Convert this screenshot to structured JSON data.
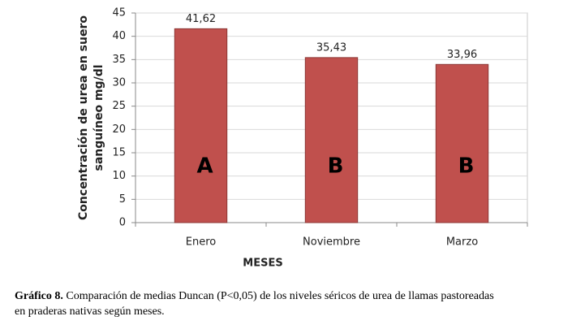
{
  "chart_data": {
    "type": "bar",
    "categories": [
      "Enero",
      "Noviembre",
      "Marzo"
    ],
    "values": [
      41.62,
      35.43,
      33.96
    ],
    "value_labels": [
      "41,62",
      "35,43",
      "33,96"
    ],
    "annotations": [
      "A",
      "B",
      "B"
    ],
    "color": "#c0504d",
    "xlabel": "MESES",
    "ylabel": [
      "Concentración de urea en suero",
      "sanguíneo mg/dl"
    ],
    "ylim": [
      0,
      45
    ],
    "yticks": [
      0,
      5,
      10,
      15,
      20,
      25,
      30,
      35,
      40,
      45
    ],
    "grid": true
  },
  "caption": {
    "label": "Gráfico 8.",
    "lines": [
      " Comparación de medias Duncan (P<0,05) de los niveles séricos de urea de llamas pastoreadas",
      "en praderas nativas según meses."
    ]
  }
}
